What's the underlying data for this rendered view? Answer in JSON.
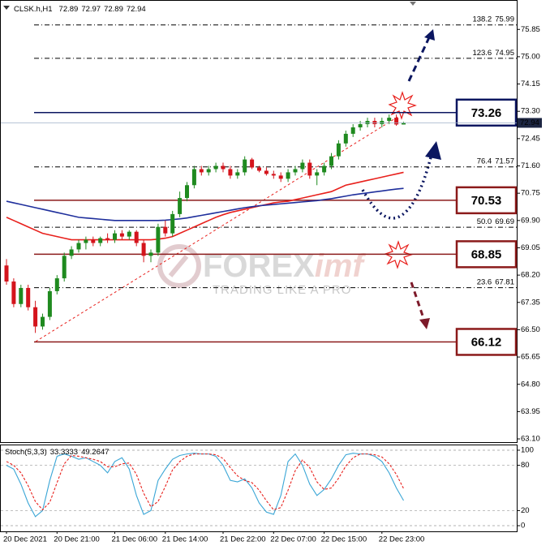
{
  "chart_data": [
    {
      "type": "candlestick",
      "title": "CLSK.h,H1",
      "categories": [
        "20 Dec 2021",
        null,
        null,
        null,
        null,
        null,
        null,
        "20 Dec 21:00",
        null,
        null,
        null,
        null,
        null,
        null,
        null,
        "21 Dec 06:00",
        null,
        null,
        null,
        null,
        null,
        null,
        "21 Dec 14:00",
        null,
        null,
        null,
        null,
        null,
        null,
        null,
        "21 Dec 22:00",
        null,
        null,
        null,
        null,
        null,
        null,
        "22 Dec 07:00",
        null,
        null,
        null,
        null,
        null,
        null,
        "22 Dec 15:00",
        null,
        null,
        null,
        null,
        null,
        null,
        null,
        "22 Dec 23:00",
        null,
        null,
        null
      ],
      "open": [
        68.5,
        68.0,
        67.3,
        67.8,
        67.2,
        66.6,
        66.9,
        67.7,
        68.1,
        68.8,
        69.0,
        69.2,
        69.3,
        69.2,
        69.35,
        69.3,
        69.5,
        69.4,
        69.55,
        69.2,
        68.8,
        68.9,
        69.7,
        69.5,
        70.1,
        70.6,
        71.0,
        71.5,
        71.4,
        71.5,
        71.6,
        71.5,
        71.3,
        71.4,
        71.8,
        71.55,
        71.45,
        71.35,
        71.3,
        71.2,
        71.4,
        71.5,
        71.7,
        71.3,
        71.4,
        71.6,
        71.9,
        72.3,
        72.6,
        72.8,
        72.9,
        73.0,
        72.9,
        73.0,
        73.1,
        72.89
      ],
      "high": [
        68.7,
        68.1,
        67.9,
        67.9,
        67.4,
        67.0,
        67.8,
        68.2,
        68.9,
        69.1,
        69.3,
        69.4,
        69.4,
        69.4,
        69.5,
        69.6,
        69.6,
        69.6,
        69.6,
        69.3,
        69.0,
        69.8,
        69.9,
        70.2,
        70.8,
        71.1,
        71.6,
        71.6,
        71.6,
        71.7,
        71.7,
        71.6,
        71.5,
        71.9,
        71.85,
        71.6,
        71.55,
        71.45,
        71.4,
        71.5,
        71.6,
        71.8,
        71.8,
        71.5,
        71.7,
        72.0,
        72.4,
        72.7,
        72.9,
        73.0,
        73.1,
        73.1,
        73.1,
        73.2,
        73.2,
        72.97
      ],
      "low": [
        67.9,
        67.2,
        67.2,
        67.1,
        66.4,
        66.5,
        66.8,
        67.6,
        68.0,
        68.7,
        68.9,
        69.0,
        69.1,
        69.1,
        69.2,
        69.2,
        69.3,
        69.3,
        69.1,
        68.6,
        68.6,
        68.8,
        69.4,
        69.4,
        70.0,
        70.5,
        70.9,
        71.3,
        71.3,
        71.4,
        71.4,
        71.2,
        71.2,
        71.3,
        71.5,
        71.4,
        71.3,
        71.2,
        71.1,
        71.1,
        71.3,
        71.4,
        71.2,
        71.0,
        71.3,
        71.5,
        71.8,
        72.2,
        72.5,
        72.7,
        72.8,
        72.8,
        72.8,
        72.9,
        72.85,
        72.89
      ],
      "close": [
        68.0,
        67.3,
        67.8,
        67.2,
        66.6,
        66.9,
        67.7,
        68.1,
        68.8,
        69.0,
        69.2,
        69.3,
        69.2,
        69.35,
        69.3,
        69.5,
        69.4,
        69.55,
        69.2,
        68.8,
        68.9,
        69.7,
        69.5,
        70.1,
        70.6,
        71.0,
        71.5,
        71.4,
        71.5,
        71.6,
        71.5,
        71.3,
        71.4,
        71.8,
        71.55,
        71.45,
        71.35,
        71.3,
        71.2,
        71.4,
        71.5,
        71.7,
        71.3,
        71.4,
        71.6,
        71.9,
        72.3,
        72.6,
        72.8,
        72.9,
        73.0,
        72.9,
        73.0,
        73.1,
        72.89,
        72.94
      ],
      "up_color": "#1f8a1f",
      "down_color": "#d4141c",
      "series": [
        {
          "color": "#e8201c",
          "values": [
            70.0,
            69.9,
            69.8,
            69.7,
            69.6,
            69.5,
            69.45,
            69.4,
            69.35,
            69.3,
            69.3,
            69.3,
            69.3,
            69.3,
            69.3,
            69.3,
            69.3,
            69.3,
            69.3,
            69.3,
            69.3,
            69.32,
            69.35,
            69.4,
            69.5,
            69.6,
            69.7,
            69.8,
            69.9,
            70.0,
            70.08,
            70.15,
            70.2,
            70.25,
            70.3,
            70.35,
            70.4,
            70.45,
            70.48,
            70.5,
            70.55,
            70.6,
            70.65,
            70.7,
            70.75,
            70.8,
            70.9,
            71.0,
            71.05,
            71.1,
            71.15,
            71.2,
            71.25,
            71.3,
            71.35,
            71.4
          ]
        },
        {
          "color": "#1f2f9c",
          "values": [
            70.5,
            70.45,
            70.4,
            70.35,
            70.3,
            70.25,
            70.2,
            70.15,
            70.1,
            70.05,
            70.0,
            69.98,
            69.96,
            69.94,
            69.92,
            69.9,
            69.9,
            69.9,
            69.9,
            69.9,
            69.9,
            69.9,
            69.91,
            69.93,
            69.95,
            69.98,
            70.02,
            70.06,
            70.1,
            70.14,
            70.18,
            70.22,
            70.26,
            70.3,
            70.33,
            70.36,
            70.38,
            70.4,
            70.42,
            70.44,
            70.46,
            70.48,
            70.5,
            70.52,
            70.55,
            70.58,
            70.62,
            70.66,
            70.7,
            70.73,
            70.76,
            70.79,
            70.82,
            70.85,
            70.88,
            70.9
          ]
        }
      ],
      "levels": [
        {
          "value": 73.26,
          "color": "#0b1660"
        },
        {
          "value": 70.53,
          "color": "#8b1a1a"
        },
        {
          "value": 68.85,
          "color": "#8b1a1a"
        },
        {
          "value": 66.12,
          "color": "#8b1a1a"
        }
      ],
      "fibonacci": [
        {
          "ratio": "138.2",
          "price": 75.99
        },
        {
          "ratio": "123.6",
          "price": 74.95
        },
        {
          "ratio": "76.4",
          "price": 71.57
        },
        {
          "ratio": "50.0",
          "price": 69.69
        },
        {
          "ratio": "23.6",
          "price": 67.81
        }
      ],
      "ylim": [
        63.0,
        76.69
      ],
      "yticks": [
        75.85,
        {
          "value": 75.0,
          "label": "75.00"
        },
        74.15,
        {
          "value": 73.3,
          "label": "73.30"
        },
        72.45,
        {
          "value": 71.6,
          "label": "71.60"
        },
        70.75,
        {
          "value": 69.9,
          "label": "69.90"
        },
        69.05,
        {
          "value": 68.2,
          "label": "68.20"
        },
        67.35,
        {
          "value": 66.5,
          "label": "66.50"
        },
        65.65,
        {
          "value": 64.8,
          "label": "64.80"
        },
        63.95,
        {
          "value": 63.1,
          "label": "63.10"
        }
      ],
      "watermark": {
        "brand": "FOREX",
        "accent": "imf",
        "tagline": "TRADING LIKE A PRO"
      }
    },
    {
      "type": "line",
      "title": "Stoch(5,3,3)",
      "series": [
        {
          "color": "#3aa6d6",
          "dashed": false,
          "values": [
            80,
            75,
            55,
            30,
            12,
            20,
            60,
            92,
            95,
            92,
            88,
            90,
            85,
            80,
            70,
            85,
            90,
            75,
            40,
            15,
            20,
            60,
            75,
            88,
            93,
            95,
            96,
            95,
            95,
            92,
            80,
            60,
            58,
            62,
            50,
            30,
            18,
            15,
            40,
            85,
            95,
            80,
            55,
            40,
            48,
            62,
            80,
            94,
            96,
            95,
            95,
            92,
            85,
            70,
            50,
            33.3333
          ]
        },
        {
          "color": "#e8201c",
          "dashed": true,
          "values": [
            85,
            80,
            70,
            53,
            32,
            21,
            31,
            57,
            82,
            93,
            92,
            90,
            88,
            85,
            78,
            78,
            82,
            83,
            68,
            43,
            25,
            32,
            52,
            74,
            85,
            92,
            95,
            95,
            95,
            94,
            89,
            77,
            66,
            60,
            57,
            47,
            33,
            21,
            24,
            47,
            73,
            87,
            77,
            58,
            48,
            50,
            63,
            79,
            90,
            95,
            95,
            94,
            91,
            82,
            68,
            49.2647
          ]
        }
      ],
      "ylim": [
        -7.5,
        107.5
      ],
      "yticks": [
        100,
        80,
        20,
        0
      ]
    }
  ]
}
